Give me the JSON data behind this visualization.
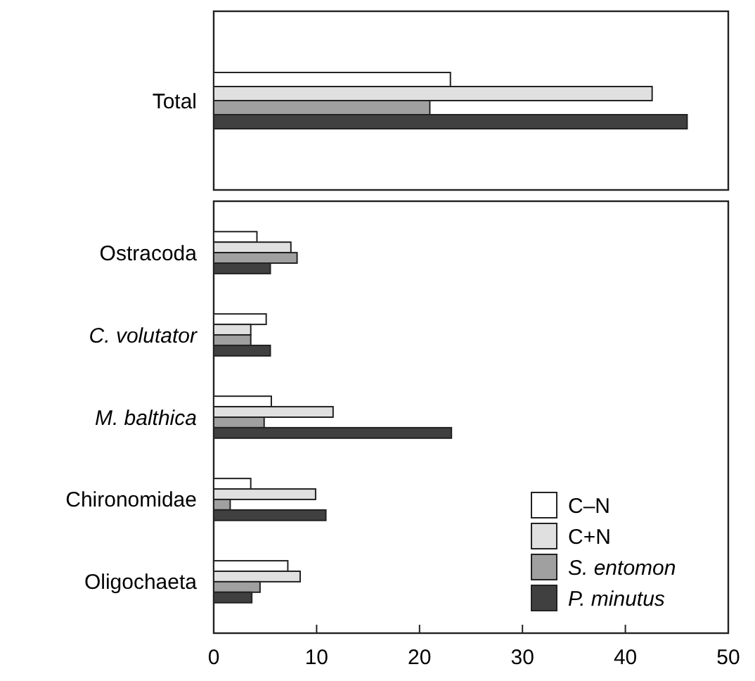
{
  "chart_data": [
    {
      "type": "bar",
      "orientation": "horizontal",
      "categories": [
        "Total"
      ],
      "xlim": [
        0,
        50
      ],
      "tick_labels": "y",
      "series": [
        {
          "color": "#ffffff",
          "values": [
            23.0
          ]
        },
        {
          "color": "#e0e0e0",
          "values": [
            42.6
          ]
        },
        {
          "color": "#a0a0a0",
          "values": [
            21.0
          ]
        },
        {
          "color": "#404040",
          "values": [
            46.0
          ]
        }
      ]
    },
    {
      "type": "bar",
      "orientation": "horizontal",
      "categories": [
        "Ostracoda",
        "C. volutator",
        "M. balthica",
        "Chironomidae",
        "Oligochaeta"
      ],
      "xlim": [
        0,
        50
      ],
      "xticks": [
        0,
        10,
        20,
        30,
        40,
        50
      ],
      "legend": "bottom right",
      "series": [
        {
          "name": "C–N",
          "color": "#ffffff",
          "values": [
            4.2,
            5.1,
            5.6,
            3.6,
            7.2
          ]
        },
        {
          "name": "C+N",
          "color": "#e0e0e0",
          "values": [
            7.5,
            3.6,
            11.6,
            9.9,
            8.4
          ]
        },
        {
          "name": "S. entomon",
          "color": "#a0a0a0",
          "values": [
            8.1,
            3.6,
            4.9,
            1.6,
            4.5
          ]
        },
        {
          "name": "P. minutus",
          "color": "#404040",
          "values": [
            5.5,
            5.5,
            23.1,
            10.9,
            3.7
          ]
        }
      ]
    }
  ]
}
